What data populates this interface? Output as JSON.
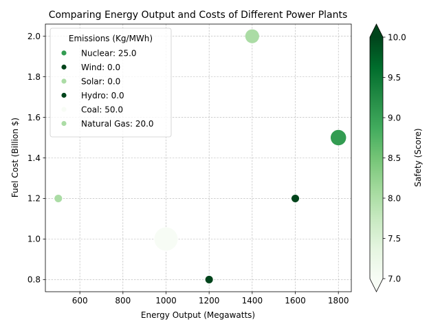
{
  "chart_data": {
    "type": "scatter",
    "title": "Comparing Energy Output and Costs of Different Power Plants",
    "xlabel": "Energy Output (Megawatts)",
    "ylabel": "Fuel Cost (Billion $)",
    "xlim": [
      440,
      1860
    ],
    "ylim": [
      0.74,
      2.06
    ],
    "xticks": [
      600,
      800,
      1000,
      1200,
      1400,
      1600,
      1800
    ],
    "yticks": [
      0.8,
      1.0,
      1.2,
      1.4,
      1.6,
      1.8,
      2.0
    ],
    "grid": true,
    "legend": {
      "title": "Emissions (Kg/MWh)",
      "placement": "upper-left",
      "entries": [
        "Nuclear: 25.0",
        "Wind: 0.0",
        "Solar: 0.0",
        "Hydro: 0.0",
        "Coal: 50.0",
        "Natural Gas: 20.0"
      ]
    },
    "colorbar": {
      "label": "Safety (Score)",
      "min": 7.0,
      "max": 10.0,
      "ticks": [
        "7.0",
        "7.5",
        "8.0",
        "8.5",
        "9.0",
        "9.5",
        "10.0"
      ],
      "colormap": "Greens",
      "extend": "both"
    },
    "points": [
      {
        "name": "Nuclear",
        "energy_output": 1800,
        "fuel_cost": 1.5,
        "emissions": 25.0,
        "safety": 9.0,
        "color": "#339c52"
      },
      {
        "name": "Wind",
        "energy_output": 1600,
        "fuel_cost": 1.2,
        "emissions": 0.0,
        "safety": 10.0,
        "color": "#00441b"
      },
      {
        "name": "Solar",
        "energy_output": 500,
        "fuel_cost": 1.2,
        "emissions": 0.0,
        "safety": 8.0,
        "color": "#abdca5"
      },
      {
        "name": "Hydro",
        "energy_output": 1200,
        "fuel_cost": 0.8,
        "emissions": 0.0,
        "safety": 10.0,
        "color": "#00441b"
      },
      {
        "name": "Coal",
        "energy_output": 1000,
        "fuel_cost": 1.0,
        "emissions": 50.0,
        "safety": 7.0,
        "color": "#f7fcf5"
      },
      {
        "name": "Natural Gas",
        "energy_output": 1400,
        "fuel_cost": 2.0,
        "emissions": 20.0,
        "safety": 8.0,
        "color": "#abdca5"
      }
    ]
  }
}
